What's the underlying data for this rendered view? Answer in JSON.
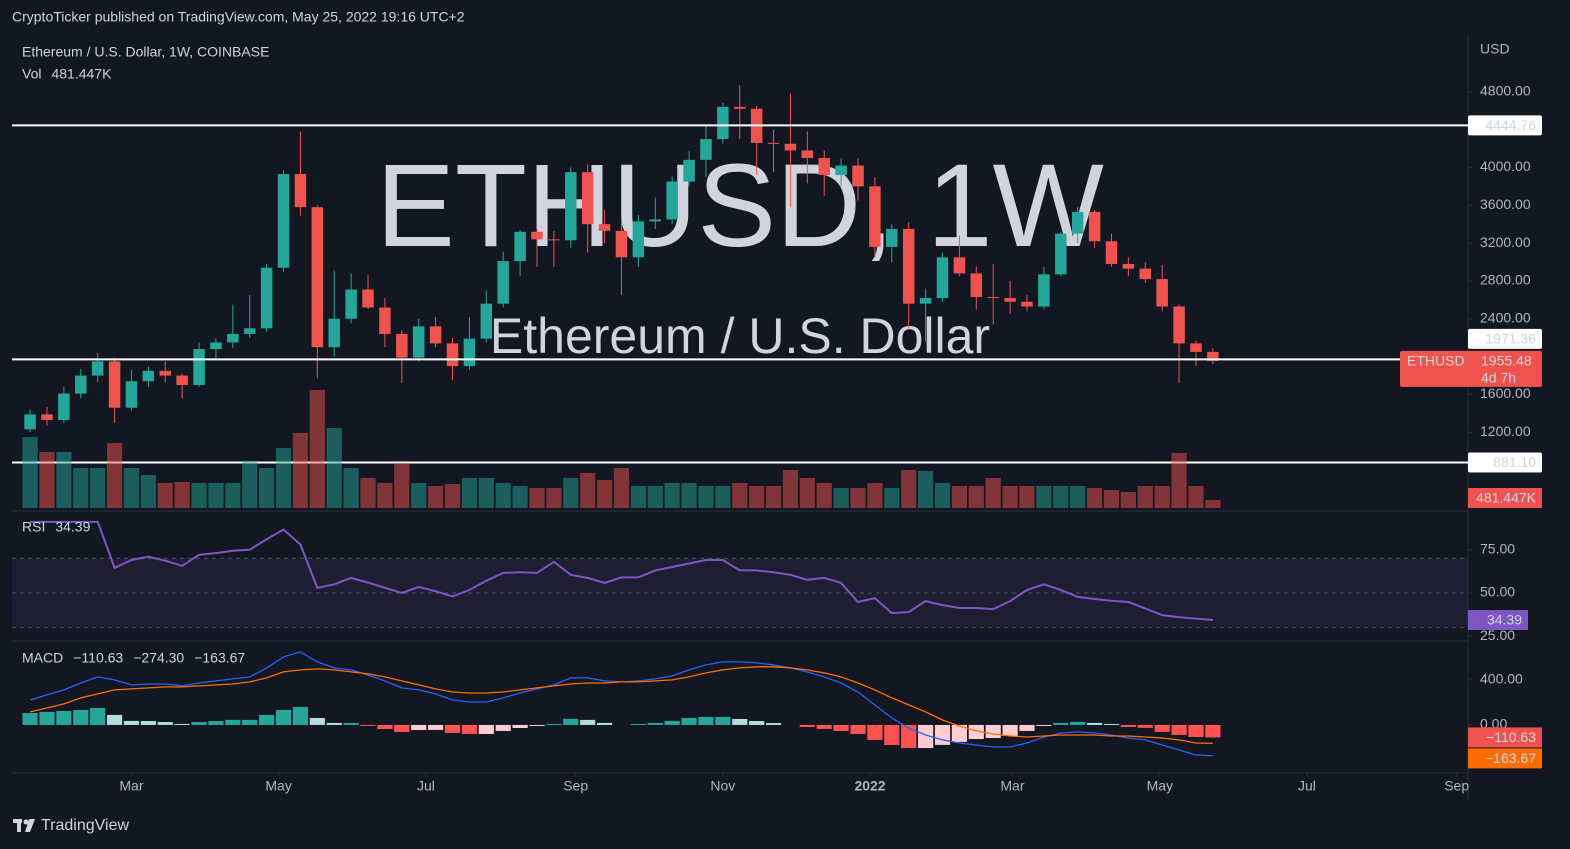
{
  "header": {
    "text": "CryptoTicker published on TradingView.com, May 25, 2022 19:16 UTC+2"
  },
  "footer": {
    "brand": "TradingView"
  },
  "chart_data": [
    {
      "type": "candlestick",
      "title": "Ethereum / U.S. Dollar, 1W, COINBASE",
      "watermark": "ETHUSD, 1W",
      "watermark_subtitle": "Ethereum / U.S. Dollar",
      "currency": "USD",
      "symbol": "ETHUSD",
      "countdown": "4d 7h",
      "up_color": "#26a69a",
      "down_color": "#ef5350",
      "open": [
        1232,
        1390,
        1330,
        1610,
        1800,
        1950,
        1460,
        1740,
        1850,
        1800,
        1700,
        2080,
        2150,
        2240,
        2300,
        2940,
        3930,
        3580,
        2100,
        2400,
        2710,
        2520,
        2240,
        1990,
        2320,
        2140,
        1900,
        2190,
        2560,
        3010,
        3320,
        3240,
        3230,
        3950,
        3400,
        3330,
        3050,
        3430,
        3450,
        3850,
        4080,
        4300,
        4640,
        4620,
        4260,
        4250,
        4180,
        4100,
        3920,
        4020,
        3800,
        3160,
        3350,
        2560,
        2620,
        3050,
        2880,
        2630,
        2620,
        2580,
        2530,
        2870,
        3300,
        3530,
        3220,
        2980,
        2930,
        2820,
        2530,
        2140,
        2050
      ],
      "high": [
        1440,
        1470,
        1680,
        1870,
        2040,
        1990,
        1860,
        1900,
        1950,
        1820,
        2150,
        2200,
        2550,
        2650,
        2980,
        3970,
        4380,
        3600,
        2910,
        2880,
        2860,
        2620,
        2280,
        2400,
        2420,
        2200,
        2420,
        2700,
        3110,
        3340,
        3350,
        3330,
        4000,
        4030,
        3550,
        3470,
        3500,
        3680,
        3900,
        4170,
        4450,
        4680,
        4870,
        4650,
        4400,
        4780,
        4380,
        4180,
        4100,
        4100,
        3900,
        3400,
        3420,
        2720,
        3100,
        3280,
        2950,
        2980,
        2800,
        2650,
        2950,
        3320,
        3580,
        3550,
        3300,
        3050,
        3000,
        2970,
        2550,
        2170,
        2090
      ],
      "low": [
        1200,
        1270,
        1300,
        1560,
        1730,
        1300,
        1430,
        1680,
        1730,
        1560,
        1680,
        1960,
        2090,
        2200,
        2260,
        2900,
        3490,
        1770,
        2000,
        2350,
        2500,
        2100,
        1720,
        1950,
        2100,
        1750,
        1860,
        2150,
        2520,
        2850,
        2950,
        2950,
        3150,
        3100,
        3200,
        2650,
        2950,
        3350,
        3400,
        3800,
        3900,
        4250,
        4300,
        3920,
        3950,
        3580,
        3830,
        3700,
        3800,
        3650,
        3050,
        3000,
        2300,
        2160,
        2580,
        2850,
        2500,
        2340,
        2450,
        2480,
        2500,
        2850,
        3200,
        3150,
        2950,
        2850,
        2780,
        2480,
        1720,
        1900,
        1920
      ],
      "close": [
        1390,
        1330,
        1610,
        1800,
        1950,
        1460,
        1740,
        1850,
        1800,
        1700,
        2080,
        2150,
        2240,
        2300,
        2940,
        3930,
        3580,
        2100,
        2400,
        2710,
        2520,
        2240,
        1990,
        2320,
        2140,
        1900,
        2190,
        2560,
        3010,
        3320,
        3240,
        3230,
        3950,
        3400,
        3330,
        3050,
        3430,
        3450,
        3850,
        4080,
        4300,
        4640,
        4620,
        4260,
        4250,
        4180,
        4100,
        3920,
        4020,
        3800,
        3160,
        3350,
        2560,
        2620,
        3050,
        2880,
        2630,
        2620,
        2580,
        2530,
        2870,
        3300,
        3530,
        3220,
        2980,
        2930,
        2820,
        2530,
        2140,
        2050,
        1955.48
      ],
      "ylim": [
        400,
        5400
      ],
      "yticks": [
        {
          "value": 4800,
          "label": "4800.00"
        },
        {
          "value": 4000,
          "label": "4000.00"
        },
        {
          "value": 3600,
          "label": "3600.00"
        },
        {
          "value": 3200,
          "label": "3200.00"
        },
        {
          "value": 2800,
          "label": "2800.00"
        },
        {
          "value": 2400,
          "label": "2400.00"
        },
        {
          "value": 1600,
          "label": "1600.00"
        },
        {
          "value": 1200,
          "label": "1200.00"
        }
      ],
      "xlim": [
        -1.07,
        85.1
      ],
      "xticks": [
        {
          "value": 6,
          "label": "Mar"
        },
        {
          "value": 14.71,
          "label": "May"
        },
        {
          "value": 23.43,
          "label": "Jul"
        },
        {
          "value": 32.29,
          "label": "Sep"
        },
        {
          "value": 41,
          "label": "Nov"
        },
        {
          "value": 49.71,
          "label": "2022"
        },
        {
          "value": 58.14,
          "label": "Mar"
        },
        {
          "value": 66.86,
          "label": "May"
        },
        {
          "value": 75.57,
          "label": "Jul"
        },
        {
          "value": 84.43,
          "label": "Sep"
        }
      ],
      "hlines": [
        4444.76,
        1971.36,
        {
          "value": 881.1,
          "label": "881.10"
        }
      ],
      "hline_color": "#ffffff"
    },
    {
      "type": "bar",
      "name": "Vol",
      "up_color": "rgba(38,166,154,0.5)",
      "down_color": "rgba(239,83,80,0.5)",
      "label_color": "#ef5350",
      "values": [
        4260000,
        3360000,
        3360000,
        2400000,
        2400000,
        3900000,
        2400000,
        1980000,
        1500000,
        1560000,
        1500000,
        1500000,
        1500000,
        2820000,
        2400000,
        3600000,
        4500000,
        7080000,
        4800000,
        2400000,
        1800000,
        1500000,
        2700000,
        1500000,
        1320000,
        1440000,
        1800000,
        1800000,
        1500000,
        1320000,
        1200000,
        1200000,
        1800000,
        2100000,
        1680000,
        2400000,
        1320000,
        1320000,
        1500000,
        1500000,
        1320000,
        1320000,
        1500000,
        1320000,
        1320000,
        2280000,
        1800000,
        1500000,
        1200000,
        1200000,
        1500000,
        1200000,
        2280000,
        2220000,
        1500000,
        1320000,
        1320000,
        1800000,
        1320000,
        1320000,
        1320000,
        1320000,
        1320000,
        1200000,
        1080000,
        960000,
        1320000,
        1320000,
        3300000,
        1320000,
        481447
      ],
      "value_labels": {
        "70": "481.447K"
      }
    },
    {
      "type": "line",
      "name": "RSI",
      "color": "#7e57c2",
      "values": [
        91,
        91,
        91,
        91,
        91,
        64.5,
        69,
        71,
        68.6,
        65.7,
        72,
        73,
        74.4,
        75,
        81,
        86.6,
        78,
        53,
        55,
        58.7,
        56,
        53,
        50,
        53.5,
        51,
        48,
        51.7,
        57,
        61.6,
        62,
        61.6,
        68,
        60.5,
        58.7,
        55.8,
        59,
        59,
        63,
        65,
        67,
        69,
        69,
        63,
        63,
        62,
        60.5,
        57.6,
        58.7,
        55.8,
        44.8,
        47,
        38.4,
        39,
        45.3,
        43,
        41.3,
        41.3,
        40.7,
        45.3,
        51.7,
        55,
        51.7,
        47.7,
        46.5,
        45.5,
        44.8,
        41,
        37.2,
        36,
        35.2,
        34.39
      ],
      "ylim": [
        24,
        95
      ],
      "yticks": [
        {
          "value": 75,
          "label": "75.00"
        },
        {
          "value": 50,
          "label": "50.00"
        },
        {
          "value": 25,
          "label": "25.00"
        }
      ],
      "levels": [
        70,
        50,
        30
      ]
    },
    {
      "type": "macd",
      "name": "MACD",
      "histogram": {
        "values": [
          106,
          116,
          124,
          133,
          151,
          89,
          36,
          35,
          26,
          9,
          26,
          35,
          45,
          45,
          89,
          133,
          160,
          62,
          18,
          18,
          -9,
          -36,
          -62,
          -45,
          -44,
          -71,
          -80,
          -80,
          -53,
          -27,
          -9,
          9,
          54,
          45,
          18,
          0,
          9,
          18,
          36,
          62,
          71,
          71,
          53,
          35,
          17,
          0,
          -18,
          -35,
          -54,
          -80,
          -133,
          -178,
          -205,
          -205,
          -177,
          -151,
          -125,
          -116,
          -98,
          -53,
          -9,
          18,
          27,
          18,
          9,
          -18,
          -26,
          -62,
          -89,
          -107,
          -110.63
        ],
        "value_labels": {
          "70": "−110.63"
        },
        "colors": [
          "#26a69a",
          "#b2dfdb",
          "#ffcdd2",
          "#ff5252"
        ],
        "label_color": "#ef5350"
      },
      "series": [
        {
          "color": "#2962ff",
          "values": [
            222,
            267,
            311,
            373,
            427,
            400,
            356,
            364,
            364,
            347,
            373,
            391,
            409,
            427,
            507,
            604,
            649,
            560,
            507,
            489,
            444,
            391,
            329,
            311,
            276,
            222,
            204,
            204,
            240,
            284,
            320,
            356,
            418,
            418,
            391,
            382,
            391,
            409,
            436,
            489,
            533,
            560,
            560,
            551,
            533,
            507,
            471,
            427,
            373,
            293,
            178,
            62,
            -27,
            -89,
            -133,
            -160,
            -178,
            -196,
            -196,
            -160,
            -107,
            -71,
            -62,
            -71,
            -89,
            -116,
            -133,
            -178,
            -222,
            -267,
            -274.3
          ],
          "value_labels": {
            "70": "−274.30"
          },
          "on_axis": false
        },
        {
          "color": "#ff6d00",
          "values": [
            116,
            151,
            187,
            240,
            276,
            311,
            320,
            329,
            338,
            338,
            347,
            356,
            364,
            382,
            418,
            471,
            489,
            498,
            489,
            471,
            453,
            427,
            391,
            356,
            320,
            293,
            284,
            284,
            293,
            311,
            329,
            347,
            364,
            373,
            373,
            382,
            382,
            391,
            400,
            427,
            462,
            489,
            507,
            516,
            516,
            507,
            489,
            462,
            427,
            373,
            311,
            240,
            178,
            116,
            44,
            -9,
            -53,
            -80,
            -98,
            -107,
            -98,
            -89,
            -89,
            -89,
            -98,
            -98,
            -107,
            -116,
            -133,
            -160,
            -163.67
          ],
          "value_labels": {
            "70": "−163.67"
          },
          "on_axis": true
        }
      ],
      "ylim": [
        -400,
        710
      ],
      "yticks": [
        {
          "value": 400,
          "label": "400.00"
        },
        {
          "value": 0,
          "label": "0.00"
        }
      ]
    }
  ]
}
